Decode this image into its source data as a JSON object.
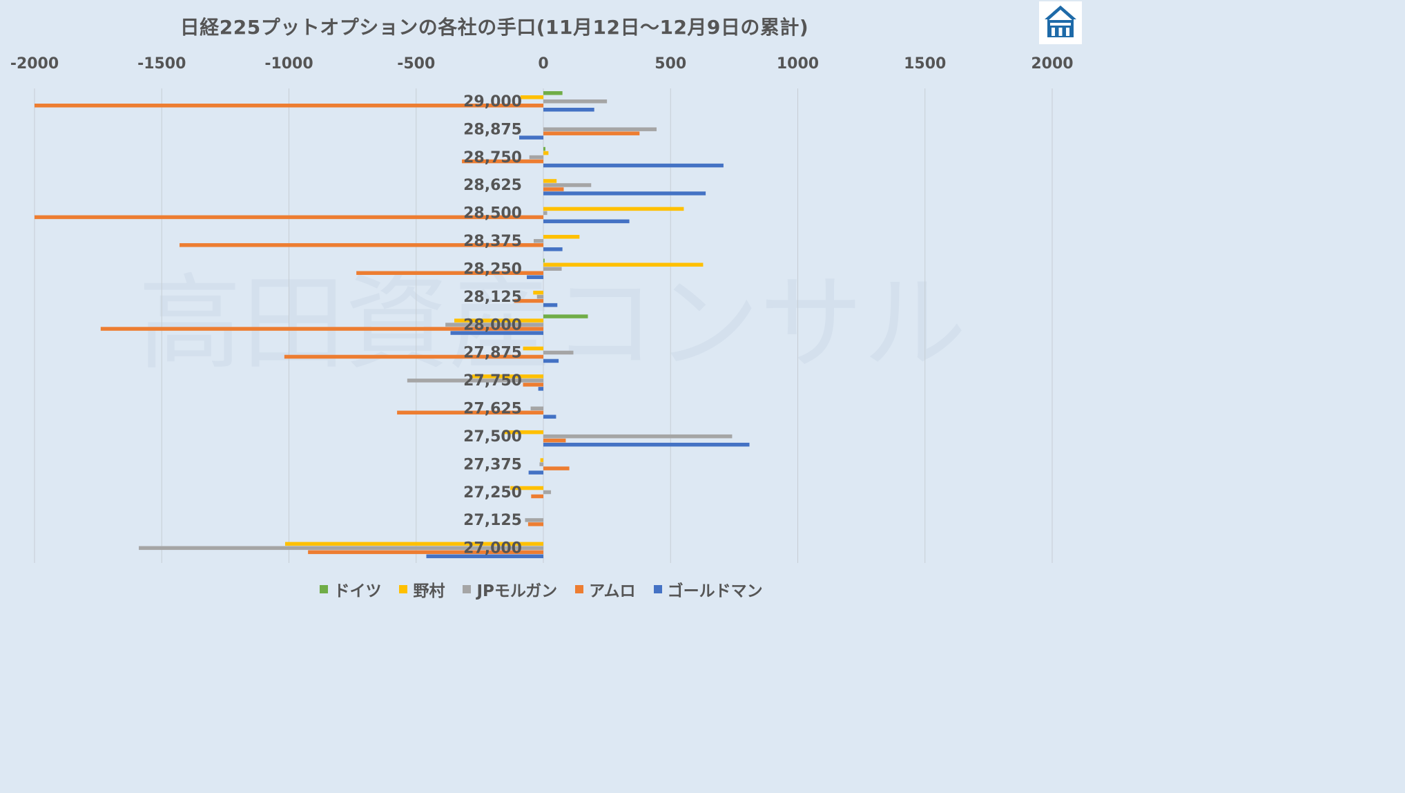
{
  "chart_data": {
    "type": "bar",
    "orientation": "horizontal",
    "title": "日経225プットオプションの各社の手口(11月12日～12月9日の累計)",
    "categories": [
      "29,000",
      "28,875",
      "28,750",
      "28,625",
      "28,500",
      "28,375",
      "28,250",
      "28,125",
      "28,000",
      "27,875",
      "27,750",
      "27,625",
      "27,500",
      "27,375",
      "27,250",
      "27,125",
      "27,000"
    ],
    "xlim": [
      -2000,
      2000
    ],
    "xticks": [
      "-2000",
      "-1500",
      "-1000",
      "-500",
      "0",
      "500",
      "1000",
      "1500",
      "2000"
    ],
    "xtick_values": [
      -2000,
      -1500,
      -1000,
      -500,
      0,
      500,
      1000,
      1500,
      2000
    ],
    "grid": true,
    "legend_position": "bottom",
    "watermark": "高田資産コンサル",
    "series": [
      {
        "name": "ドイツ",
        "color": "#70ad47",
        "values": [
          75,
          0,
          8,
          0,
          0,
          0,
          5,
          0,
          175,
          0,
          0,
          0,
          0,
          0,
          0,
          0,
          0
        ]
      },
      {
        "name": "野村",
        "color": "#ffc000",
        "values": [
          -90,
          0,
          20,
          52,
          552,
          142,
          628,
          -40,
          -350,
          -80,
          -280,
          0,
          -158,
          -12,
          -130,
          0,
          -1015
        ]
      },
      {
        "name": "JPモルガン",
        "color": "#a5a5a5",
        "values": [
          250,
          445,
          -55,
          188,
          15,
          -38,
          72,
          -25,
          -385,
          118,
          -535,
          -50,
          742,
          -15,
          30,
          -72,
          -1590
        ]
      },
      {
        "name": "アムロ",
        "color": "#ed7d31",
        "values": [
          -2000,
          378,
          -320,
          80,
          -2000,
          -1430,
          -735,
          -115,
          -1740,
          -1018,
          -80,
          -575,
          88,
          102,
          -48,
          -60,
          -925
        ]
      },
      {
        "name": "ゴールドマン",
        "color": "#4472c4",
        "values": [
          200,
          -95,
          708,
          638,
          338,
          75,
          -65,
          55,
          -365,
          60,
          -20,
          50,
          810,
          -58,
          0,
          0,
          -460
        ]
      }
    ]
  }
}
